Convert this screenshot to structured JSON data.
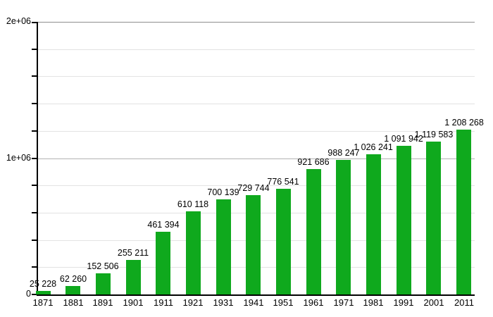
{
  "chart_data": {
    "type": "bar",
    "title": "",
    "xlabel": "",
    "ylabel": "",
    "categories": [
      "1871",
      "1881",
      "1891",
      "1901",
      "1911",
      "1921",
      "1931",
      "1941",
      "1951",
      "1961",
      "1971",
      "1981",
      "1991",
      "2001",
      "2011"
    ],
    "values": [
      25228,
      62260,
      152506,
      255211,
      461394,
      610118,
      700139,
      729744,
      776541,
      921686,
      988247,
      1026241,
      1091942,
      1119583,
      1208268
    ],
    "value_labels": [
      "25 228",
      "62 260",
      "152 506",
      "255 211",
      "461 394",
      "610 118",
      "700 139",
      "729 744",
      "776 541",
      "921 686",
      "988 247",
      "1 026 241",
      "1 091 942",
      "1 119 583",
      "1 208 268"
    ],
    "ylim": [
      0,
      2000000
    ],
    "y_major_ticks": [
      {
        "value": 0,
        "label": "0"
      },
      {
        "value": 1000000,
        "label": "1e+06"
      },
      {
        "value": 2000000,
        "label": "2e+06"
      }
    ],
    "y_minor_step": 200000,
    "grid": true,
    "legend": null,
    "colors": {
      "bar": "#0fa91d",
      "axis": "#000000",
      "grid_minor": "#e3e3e3",
      "grid_major": "#b2b2b2",
      "grid_top": "#8f8f8f",
      "text": "#000000",
      "background": "#ffffff"
    }
  }
}
